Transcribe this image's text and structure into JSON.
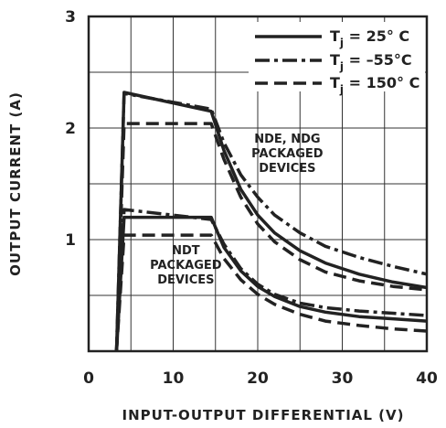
{
  "chart_data": {
    "type": "line",
    "xlabel": "INPUT-OUTPUT DIFFERENTIAL (V)",
    "ylabel": "OUTPUT CURRENT (A)",
    "xlim": [
      0,
      40
    ],
    "ylim": [
      0,
      3
    ],
    "x_ticks": [
      "0",
      "10",
      "20",
      "30",
      "40"
    ],
    "y_ticks": [
      "0",
      "1",
      "2",
      "3"
    ],
    "grid": true,
    "legend_position": "top-right",
    "legend": [
      {
        "prefix": "T",
        "sub": "j",
        "suffix": " = 25° C",
        "style": "solid"
      },
      {
        "prefix": "T",
        "sub": "j",
        "suffix": " = –55°C",
        "style": "dashdot"
      },
      {
        "prefix": "T",
        "sub": "j",
        "suffix": " = 150° C",
        "style": "dashed"
      }
    ],
    "annotations": [
      {
        "lines": [
          "NDE, NDG",
          "PACKAGED",
          "DEVICES"
        ],
        "anchor": [
          23.5,
          1.87
        ]
      },
      {
        "lines": [
          "NDT",
          "PACKAGED",
          "DEVICES"
        ],
        "anchor": [
          11.5,
          0.87
        ]
      }
    ],
    "series": [
      {
        "group": "NDE_NDG",
        "style": "solid",
        "x": [
          3.3,
          4.2,
          14.5,
          16,
          18,
          20,
          22,
          25,
          28,
          32,
          36,
          40
        ],
        "y": [
          0,
          2.32,
          2.15,
          1.8,
          1.45,
          1.22,
          1.06,
          0.9,
          0.79,
          0.69,
          0.62,
          0.57
        ]
      },
      {
        "group": "NDE_NDG",
        "style": "dashdot",
        "x": [
          3.3,
          4.2,
          14.5,
          16,
          18,
          20,
          22,
          25,
          28,
          32,
          36,
          40
        ],
        "y": [
          0,
          2.31,
          2.17,
          1.87,
          1.58,
          1.38,
          1.22,
          1.06,
          0.94,
          0.84,
          0.76,
          0.69
        ]
      },
      {
        "group": "NDE_NDG",
        "style": "dashed",
        "x": [
          3.3,
          4.2,
          14.5,
          16,
          18,
          20,
          22,
          25,
          28,
          32,
          36,
          40
        ],
        "y": [
          0,
          2.04,
          2.04,
          1.72,
          1.38,
          1.14,
          0.98,
          0.82,
          0.71,
          0.63,
          0.58,
          0.55
        ]
      },
      {
        "group": "NDT",
        "style": "solid",
        "x": [
          3.3,
          4.2,
          14.5,
          16,
          18,
          20,
          22,
          25,
          28,
          32,
          36,
          40
        ],
        "y": [
          0,
          1.2,
          1.2,
          0.93,
          0.72,
          0.58,
          0.49,
          0.4,
          0.35,
          0.31,
          0.29,
          0.27
        ]
      },
      {
        "group": "NDT",
        "style": "dashdot",
        "x": [
          3.3,
          4.2,
          14.5,
          16,
          18,
          20,
          22,
          25,
          28,
          32,
          36,
          40
        ],
        "y": [
          0,
          1.27,
          1.18,
          0.96,
          0.74,
          0.6,
          0.51,
          0.43,
          0.39,
          0.36,
          0.34,
          0.32
        ]
      },
      {
        "group": "NDT",
        "style": "dashed",
        "x": [
          3.3,
          4.2,
          14.5,
          16,
          18,
          20,
          22,
          25,
          28,
          32,
          36,
          40
        ],
        "y": [
          0,
          1.04,
          1.04,
          0.83,
          0.64,
          0.51,
          0.42,
          0.33,
          0.27,
          0.23,
          0.2,
          0.18
        ]
      }
    ]
  }
}
